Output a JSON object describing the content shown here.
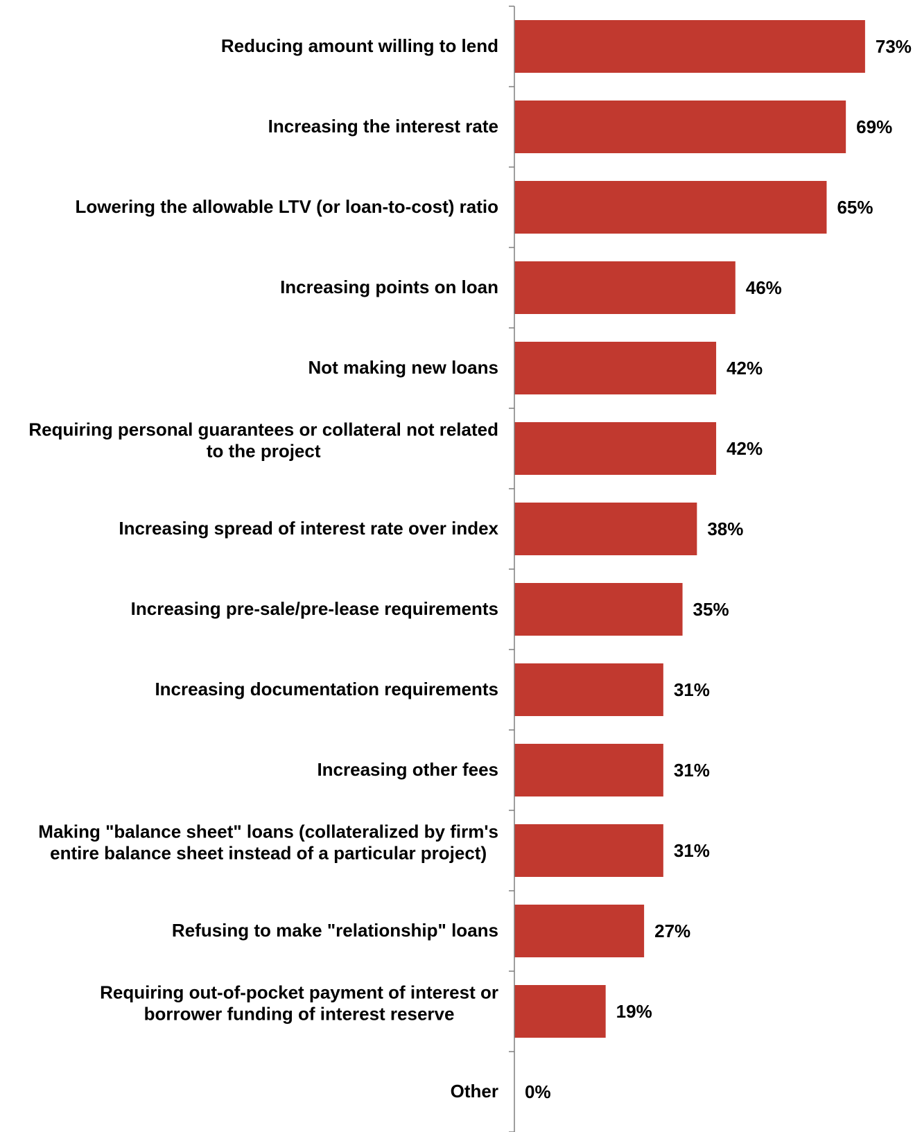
{
  "chart_data": {
    "type": "bar",
    "orientation": "horizontal",
    "categories": [
      [
        "Reducing amount willing to lend"
      ],
      [
        "Increasing the interest rate"
      ],
      [
        "Lowering the allowable LTV (or loan-to-cost) ratio"
      ],
      [
        "Increasing points on loan"
      ],
      [
        "Not making new loans"
      ],
      [
        "Requiring personal guarantees or collateral not related",
        "to the project"
      ],
      [
        "Increasing spread of interest rate over index"
      ],
      [
        "Increasing pre-sale/pre-lease requirements"
      ],
      [
        "Increasing documentation requirements"
      ],
      [
        "Increasing other fees"
      ],
      [
        "Making \"balance sheet\" loans (collateralized by firm's",
        "entire balance sheet instead of a particular project)"
      ],
      [
        "Refusing to make \"relationship\" loans"
      ],
      [
        "Requiring out-of-pocket payment of interest or",
        "borrower funding of interest reserve"
      ],
      [
        "Other"
      ]
    ],
    "values": [
      73,
      69,
      65,
      46,
      42,
      42,
      38,
      35,
      31,
      31,
      31,
      27,
      19,
      0
    ],
    "value_labels": [
      "73%",
      "69%",
      "65%",
      "46%",
      "42%",
      "42%",
      "38%",
      "35%",
      "31%",
      "31%",
      "31%",
      "27%",
      "19%",
      "0%"
    ],
    "xlim": [
      0,
      100
    ],
    "bar_color": "#c1392f",
    "axis_color": "#7f7f7f",
    "grid": false,
    "legend": "none"
  }
}
